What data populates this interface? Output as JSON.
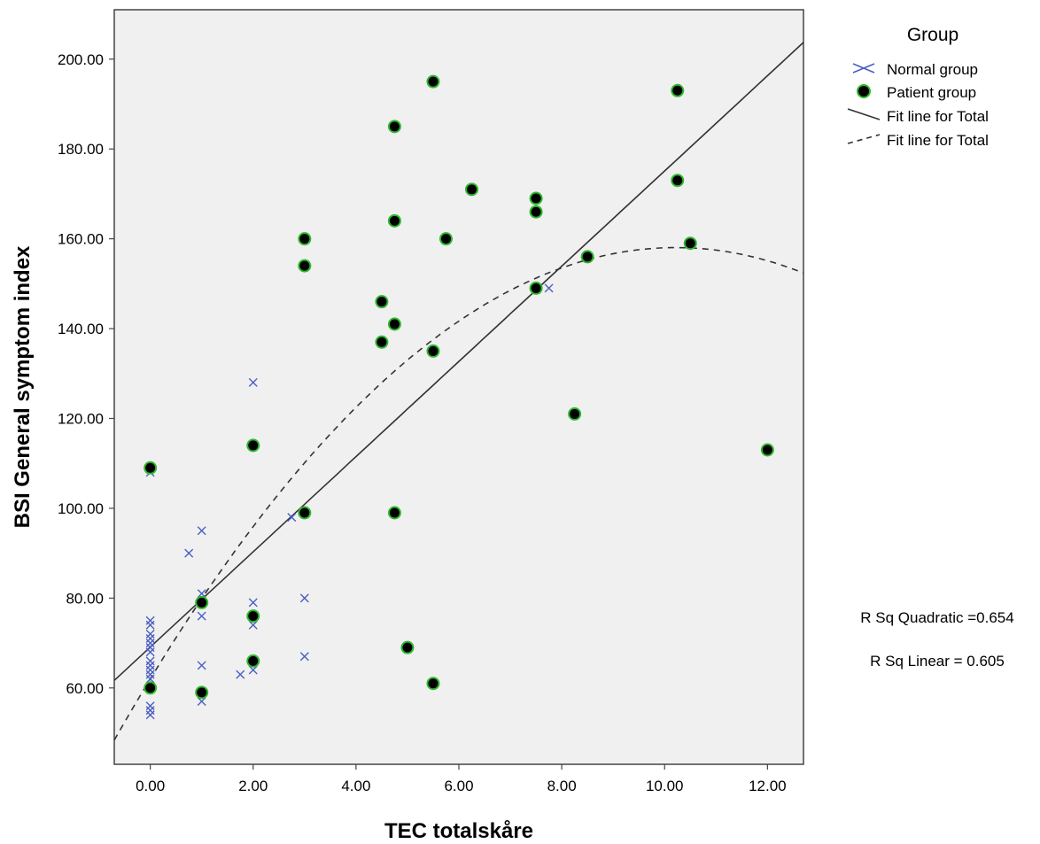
{
  "chart_data": {
    "type": "scatter",
    "xlabel": "TEC totalskåre",
    "ylabel": "BSI General symptom index",
    "xlim": [
      -0.7,
      12.7
    ],
    "ylim": [
      43,
      211
    ],
    "x_ticks": [
      0,
      2,
      4,
      6,
      8,
      10,
      12
    ],
    "x_tick_labels": [
      "0.00",
      "2.00",
      "4.00",
      "6.00",
      "8.00",
      "10.00",
      "12.00"
    ],
    "y_ticks": [
      60,
      80,
      100,
      120,
      140,
      160,
      180,
      200
    ],
    "y_tick_labels": [
      "60.00",
      "80.00",
      "100.00",
      "120.00",
      "140.00",
      "160.00",
      "180.00",
      "200.00"
    ],
    "grid": false,
    "legend_position": "right",
    "legend_title": "Group",
    "legend_items": [
      {
        "label": "Normal group",
        "marker": "x-icon"
      },
      {
        "label": "Patient group",
        "marker": "filled-circle-icon"
      },
      {
        "label": "Fit line for Total",
        "marker": "solid-line-icon"
      },
      {
        "label": "Fit line for Total",
        "marker": "dashed-line-icon"
      }
    ],
    "series": [
      {
        "name": "Normal group",
        "marker": "x",
        "color": "#4a5fc1",
        "points": [
          [
            0,
            108
          ],
          [
            0,
            75
          ],
          [
            0,
            74
          ],
          [
            0,
            72
          ],
          [
            0,
            71
          ],
          [
            0,
            70
          ],
          [
            0,
            69
          ],
          [
            0,
            68
          ],
          [
            0,
            66
          ],
          [
            0,
            65
          ],
          [
            0,
            64
          ],
          [
            0,
            63
          ],
          [
            0,
            62
          ],
          [
            0,
            56
          ],
          [
            0,
            55
          ],
          [
            0,
            54
          ],
          [
            0.75,
            90
          ],
          [
            1,
            95
          ],
          [
            1,
            81
          ],
          [
            1,
            76
          ],
          [
            1,
            65
          ],
          [
            1,
            57
          ],
          [
            1.75,
            63
          ],
          [
            2,
            128
          ],
          [
            2,
            79
          ],
          [
            2,
            74
          ],
          [
            2,
            64
          ],
          [
            2.75,
            98
          ],
          [
            3,
            80
          ],
          [
            3,
            67
          ],
          [
            7.75,
            149
          ]
        ]
      },
      {
        "name": "Patient group",
        "marker": "circle",
        "color": "#000000",
        "edge_color": "#2eb82e",
        "points": [
          [
            0,
            109
          ],
          [
            0,
            60
          ],
          [
            1,
            79
          ],
          [
            1,
            59
          ],
          [
            2,
            114
          ],
          [
            2,
            76
          ],
          [
            2,
            66
          ],
          [
            3,
            160
          ],
          [
            3,
            154
          ],
          [
            3,
            99
          ],
          [
            4.5,
            146
          ],
          [
            4.5,
            137
          ],
          [
            4.75,
            185
          ],
          [
            4.75,
            164
          ],
          [
            4.75,
            141
          ],
          [
            4.75,
            99
          ],
          [
            5,
            69
          ],
          [
            5.5,
            195
          ],
          [
            5.5,
            135
          ],
          [
            5.5,
            61
          ],
          [
            5.75,
            160
          ],
          [
            6.25,
            171
          ],
          [
            7.5,
            169
          ],
          [
            7.5,
            166
          ],
          [
            7.5,
            149
          ],
          [
            8.25,
            121
          ],
          [
            8.5,
            156
          ],
          [
            10.25,
            193
          ],
          [
            10.25,
            173
          ],
          [
            10.5,
            159
          ],
          [
            12,
            113
          ]
        ]
      }
    ],
    "fit_lines": [
      {
        "name": "Fit line for Total",
        "kind": "linear",
        "style": "solid",
        "intercept": 69.1,
        "slope": 10.6
      },
      {
        "name": "Fit line for Total",
        "kind": "quadratic",
        "style": "dashed",
        "a": 62.0,
        "b": 18.8,
        "c": -0.92
      }
    ],
    "annotations": {
      "r_sq_quadratic": "R Sq Quadratic =0.654",
      "r_sq_linear": "R Sq Linear = 0.605"
    }
  }
}
